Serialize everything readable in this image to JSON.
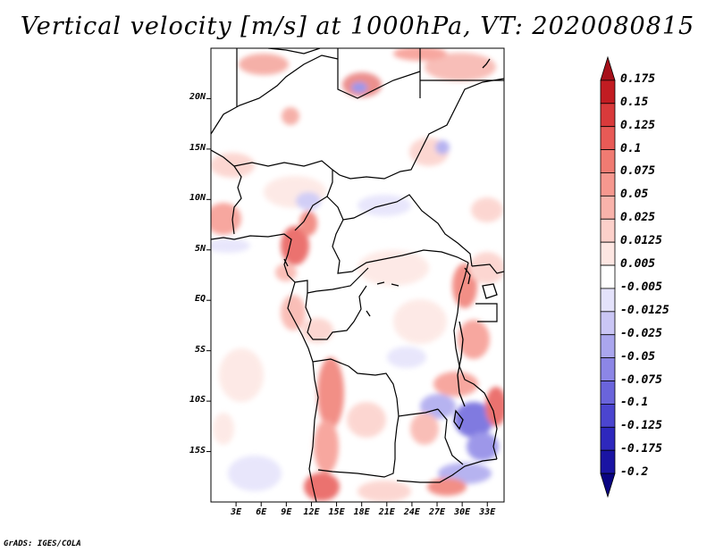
{
  "title": "Vertical velocity [m/s] at 1000hPa, VT: 2020080815",
  "credit": "GrADS: IGES/COLA",
  "map": {
    "region": "Central and Southern-Central Africa",
    "lon_range": [
      0,
      35
    ],
    "lat_range": [
      -20,
      25
    ],
    "latitude_labels": [
      "20N",
      "15N",
      "10N",
      "5N",
      "EQ",
      "5S",
      "10S",
      "15S"
    ],
    "latitude_values": [
      20,
      15,
      10,
      5,
      0,
      -5,
      -10,
      -15
    ],
    "longitude_labels": [
      "3E",
      "6E",
      "9E",
      "12E",
      "15E",
      "18E",
      "21E",
      "24E",
      "27E",
      "30E",
      "33E"
    ],
    "longitude_values": [
      3,
      6,
      9,
      12,
      15,
      18,
      21,
      24,
      27,
      30,
      33
    ]
  },
  "colorbar": {
    "labels": [
      "0.175",
      "0.15",
      "0.125",
      "0.1",
      "0.075",
      "0.05",
      "0.025",
      "0.0125",
      "0.005",
      "-0.005",
      "-0.0125",
      "-0.025",
      "-0.05",
      "-0.075",
      "-0.1",
      "-0.125",
      "-0.175",
      "-0.2"
    ],
    "colors": [
      "#a6101a",
      "#c21c22",
      "#d93a3b",
      "#e85a56",
      "#f07b72",
      "#f6988f",
      "#f9b3ab",
      "#fcd0ca",
      "#fde6e2",
      "#ffffff",
      "#e4e2fb",
      "#cac6f5",
      "#aaa6ee",
      "#8c86e6",
      "#6a64db",
      "#4b45cf",
      "#2e28bd",
      "#1a14a3",
      "#0a0482"
    ]
  }
}
